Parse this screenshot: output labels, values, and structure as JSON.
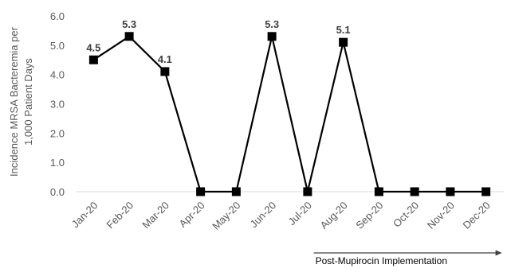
{
  "chart_data": {
    "type": "line",
    "categories": [
      "Jan-20",
      "Feb-20",
      "Mar-20",
      "Apr-20",
      "May-20",
      "Jun-20",
      "Jul-20",
      "Aug-20",
      "Sep-20",
      "Oct-20",
      "Nov-20",
      "Dec-20"
    ],
    "values": [
      4.5,
      5.3,
      4.1,
      0.0,
      0.0,
      5.3,
      0.0,
      5.1,
      0.0,
      0.0,
      0.0,
      0.0
    ],
    "data_labels": [
      "4.5",
      "5.3",
      "4.1",
      "",
      "",
      "5.3",
      "",
      "5.1",
      "",
      "",
      "",
      ""
    ],
    "ylabel_lines": [
      "Incidence MRSA Bacteremia per",
      "1,000 Patient Days"
    ],
    "ylim": [
      0,
      6
    ],
    "yticks": [
      "0.0",
      "1.0",
      "2.0",
      "3.0",
      "4.0",
      "5.0",
      "6.0"
    ],
    "grid": false,
    "annotation": {
      "text": "Post-Mupirocin Implementation",
      "arrow_from_category": "Aug-20",
      "arrow_to_category": "Dec-20"
    },
    "colors": {
      "line": "#000000",
      "marker": "#000000",
      "axis": "#d9d9d9",
      "text": "#595959",
      "label": "#404040"
    }
  }
}
